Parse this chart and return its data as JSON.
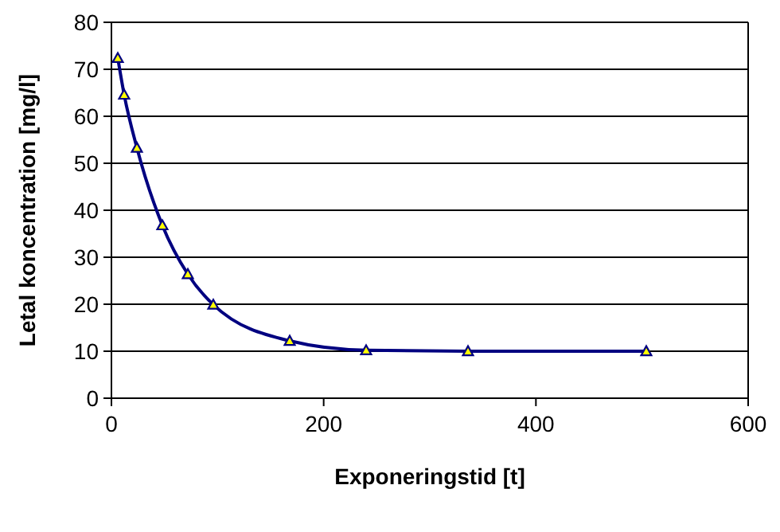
{
  "chart_data": {
    "type": "line",
    "xlabel": "Exponeringstid  [t]",
    "ylabel": "Letal koncentration [mg/l]",
    "x": [
      6,
      12,
      24,
      48,
      72,
      96,
      168,
      240,
      336,
      504
    ],
    "series": [
      {
        "color": "#000080",
        "values": [
          72.4,
          64.6,
          53.3,
          36.8,
          26.4,
          19.9,
          12.2,
          10.2,
          10,
          10
        ]
      }
    ],
    "xlim": [
      0,
      600
    ],
    "xticks": [
      0,
      200,
      400,
      600
    ],
    "ylim": [
      0,
      80
    ],
    "yticks": [
      0,
      10,
      20,
      30,
      40,
      50,
      60,
      70,
      80
    ],
    "grid": "y",
    "marker": "triangle"
  }
}
